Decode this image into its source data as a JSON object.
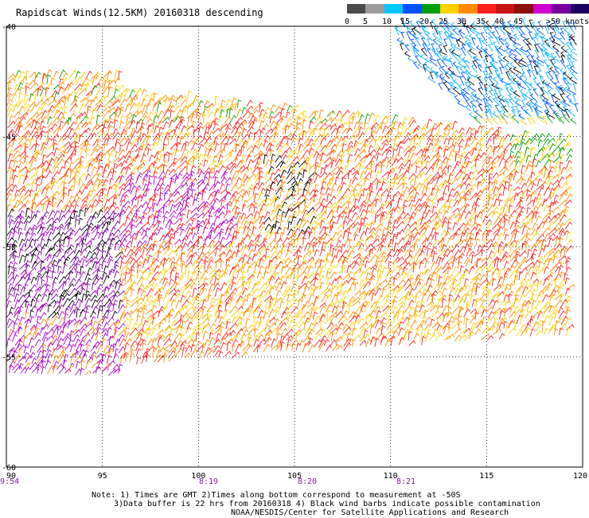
{
  "title": "Rapidscat Winds(12.5KM) 20160318 descending",
  "legend": {
    "labels": [
      "0",
      "5",
      "10",
      "15",
      "20",
      "25",
      "30",
      "35",
      "40",
      "45",
      ">50 knots"
    ],
    "colors": [
      "#4a4a4a",
      "#9c9c9c",
      "#00c8ff",
      "#0050ff",
      "#00a000",
      "#ffd000",
      "#ff8c00",
      "#ff2020",
      "#c81414",
      "#8b1010",
      "#d000d0",
      "#7800a0",
      "#1a0060"
    ]
  },
  "map": {
    "lon_range": [
      90,
      120
    ],
    "lat_range": [
      -40,
      -60
    ],
    "x_ticks": [
      "90",
      "95",
      "100",
      "105",
      "110",
      "115",
      "120"
    ],
    "y_ticks": [
      "-40",
      "-45",
      "-50",
      "-55",
      "-60"
    ],
    "times": [
      "9:54",
      "8:19",
      "8:20",
      "8:21"
    ]
  },
  "notes": {
    "line1": "Note: 1) Times are GMT 2)Times along bottom correspond to measurement at -50S",
    "line2": "3)Data buffer is 22 hrs from 20160318 4) Black wind barbs indicate possible contamination",
    "line3": "NOAA/NESDIS/Center for Satellite Applications and Research"
  }
}
